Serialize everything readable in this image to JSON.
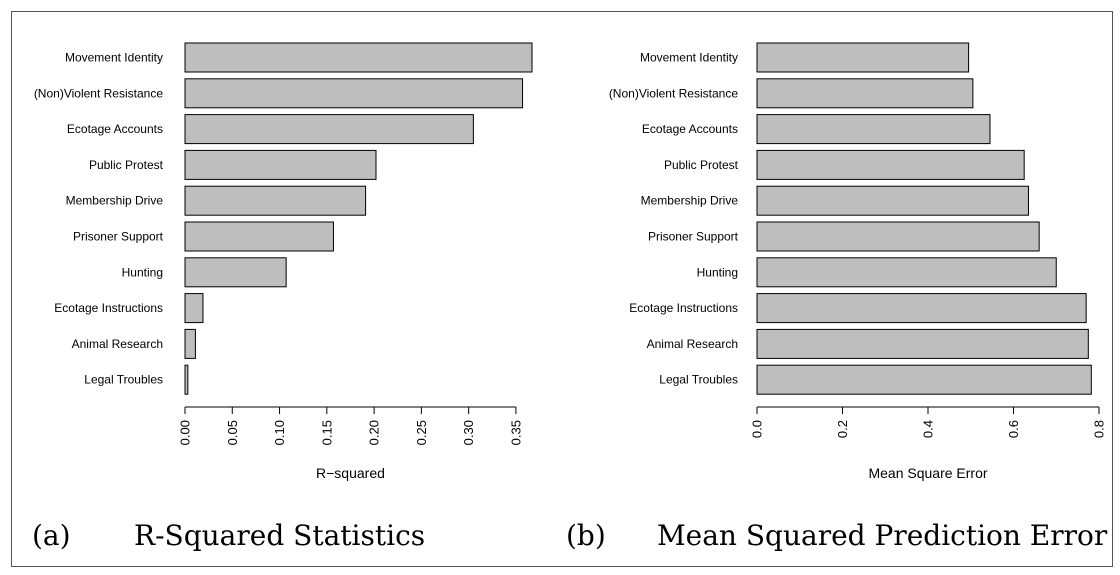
{
  "chart_data": [
    {
      "type": "bar",
      "orientation": "horizontal",
      "categories": [
        "Movement Identity",
        "(Non)Violent Resistance",
        "Ecotage Accounts",
        "Public Protest",
        "Membership Drive",
        "Prisoner Support",
        "Hunting",
        "Ecotage Instructions",
        "Animal Research",
        "Legal Troubles"
      ],
      "values": [
        0.367,
        0.357,
        0.305,
        0.202,
        0.191,
        0.157,
        0.107,
        0.019,
        0.011,
        0.003
      ],
      "xlabel": "R−squared",
      "xticks": [
        "0.00",
        "0.05",
        "0.10",
        "0.15",
        "0.20",
        "0.25",
        "0.30",
        "0.35"
      ],
      "xtick_values": [
        0,
        0.05,
        0.1,
        0.15,
        0.2,
        0.25,
        0.3,
        0.35
      ],
      "xlim": [
        0,
        0.367
      ],
      "grid": false,
      "caption_letter": "(a)",
      "caption_title": "R-Squared Statistics"
    },
    {
      "type": "bar",
      "orientation": "horizontal",
      "categories": [
        "Movement Identity",
        "(Non)Violent Resistance",
        "Ecotage Accounts",
        "Public Protest",
        "Membership Drive",
        "Prisoner Support",
        "Hunting",
        "Ecotage Instructions",
        "Animal Research",
        "Legal Troubles"
      ],
      "values": [
        0.495,
        0.505,
        0.545,
        0.625,
        0.635,
        0.66,
        0.7,
        0.77,
        0.775,
        0.782
      ],
      "xlabel": "Mean Square Error",
      "xticks": [
        "0.0",
        "0.2",
        "0.4",
        "0.6",
        "0.8"
      ],
      "xtick_values": [
        0,
        0.2,
        0.4,
        0.6,
        0.8
      ],
      "xlim": [
        0,
        0.8
      ],
      "grid": false,
      "caption_letter": "(b)",
      "caption_title": "Mean Squared Prediction Error"
    }
  ]
}
